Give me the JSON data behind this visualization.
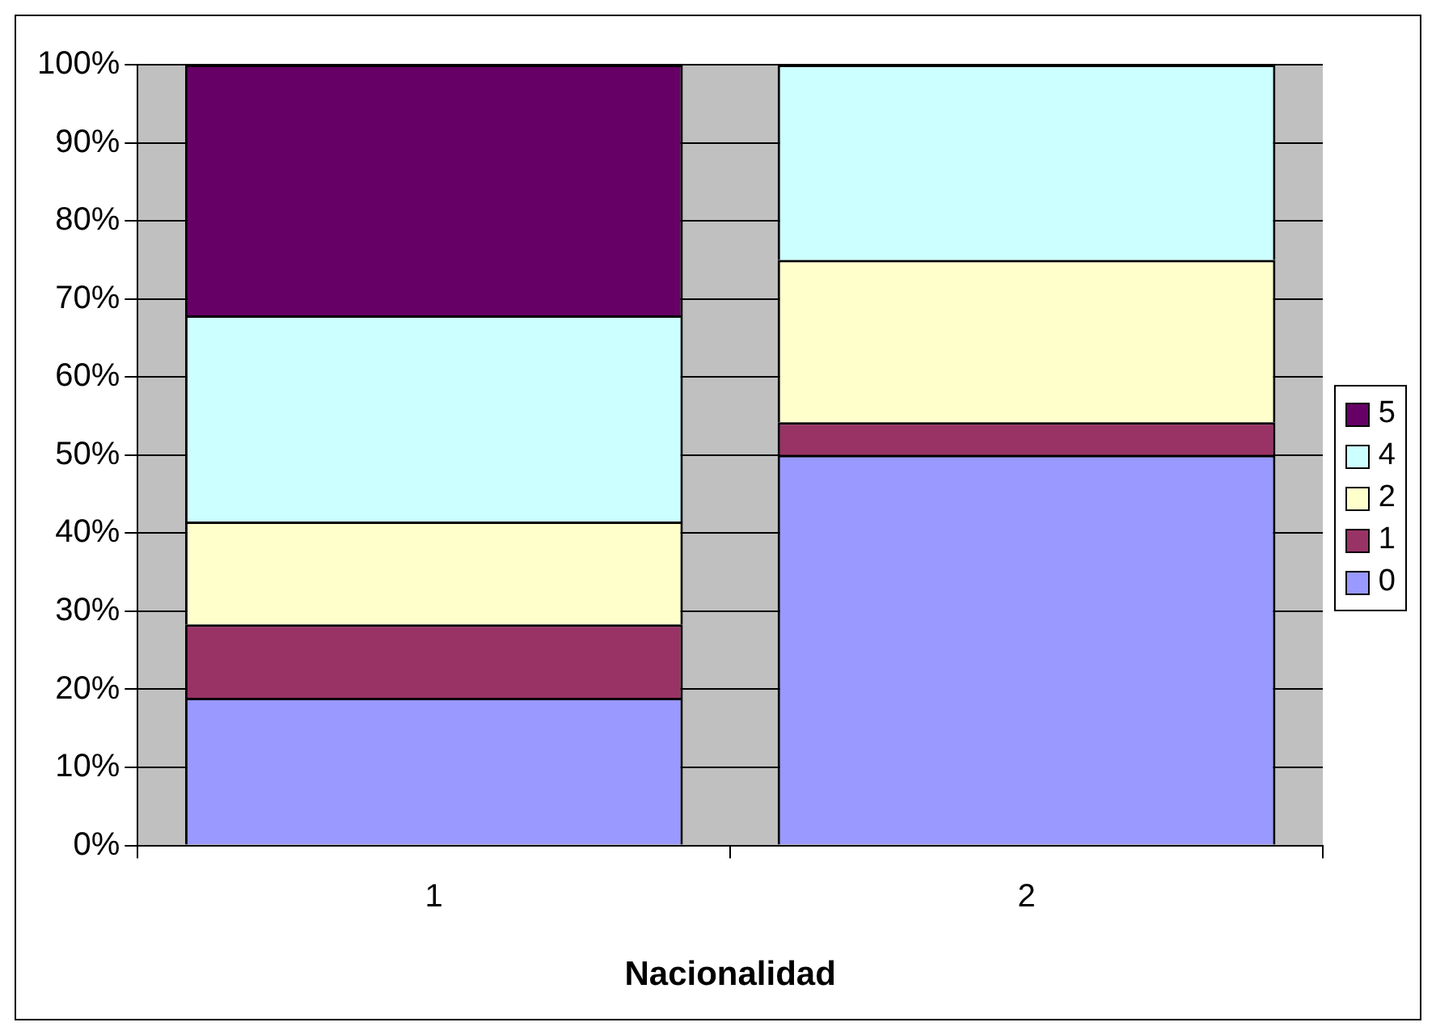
{
  "chart_data": {
    "type": "bar",
    "stacked": true,
    "xlabel": "Nacionalidad",
    "categories": [
      "1",
      "2"
    ],
    "series": [
      {
        "name": "0",
        "color": "#9999ff",
        "values": [
          18.9,
          50
        ]
      },
      {
        "name": "1",
        "color": "#993366",
        "values": [
          9.4,
          4.2
        ]
      },
      {
        "name": "2",
        "color": "#ffffcc",
        "values": [
          13.2,
          20.8
        ]
      },
      {
        "name": "4",
        "color": "#ccffff",
        "values": [
          26.4,
          25
        ]
      },
      {
        "name": "5",
        "color": "#660066",
        "values": [
          32.1,
          0
        ]
      }
    ],
    "ylim": [
      0,
      100
    ],
    "yticks": [
      {
        "value": 0,
        "label": "0%"
      },
      {
        "value": 10,
        "label": "10%"
      },
      {
        "value": 20,
        "label": "20%"
      },
      {
        "value": 30,
        "label": "30%"
      },
      {
        "value": 40,
        "label": "40%"
      },
      {
        "value": 50,
        "label": "50%"
      },
      {
        "value": 60,
        "label": "60%"
      },
      {
        "value": 70,
        "label": "70%"
      },
      {
        "value": 80,
        "label": "80%"
      },
      {
        "value": 90,
        "label": "90%"
      },
      {
        "value": 100,
        "label": "100%"
      }
    ],
    "grid": "y",
    "legend": "right"
  }
}
